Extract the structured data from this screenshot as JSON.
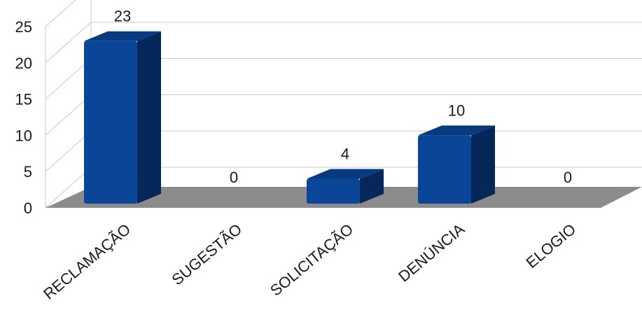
{
  "chart_data": {
    "type": "bar",
    "title": "",
    "xlabel": "",
    "ylabel": "",
    "categories": [
      "RECLAMAÇÃO",
      "SUGESTÃO",
      "SOLICITAÇÃO",
      "DENÚNCIA",
      "ELOGIO"
    ],
    "values": [
      23,
      0,
      4,
      10,
      0
    ],
    "ylim": [
      0,
      25
    ],
    "yticks": [
      "0",
      "5",
      "10",
      "15",
      "20",
      "25"
    ],
    "grid": true,
    "legend": "none",
    "style": "3d-column",
    "colors": {
      "bar_front": "#0a4597",
      "bar_side": "#06275a",
      "bar_top": "#083a80",
      "floor": "#8c8c8c",
      "grid": "#c8c8c8"
    }
  }
}
